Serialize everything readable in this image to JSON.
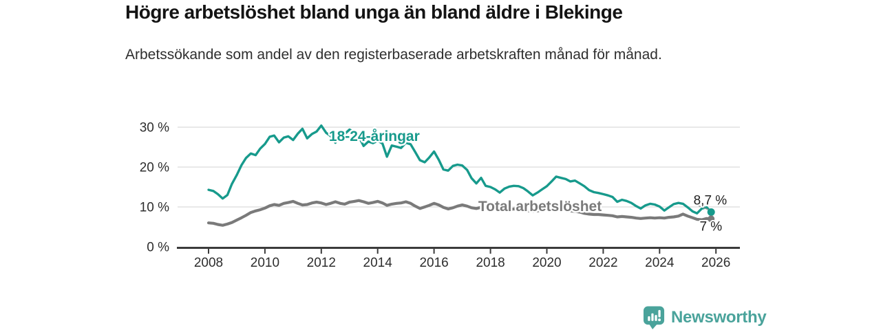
{
  "header": {
    "title": "Högre arbetslöshet bland unga än bland äldre i Blekinge",
    "subtitle": "Arbetssökande som andel av den registerbaserade arbetskraften månad för månad."
  },
  "footer": {
    "brand": "Newsworthy",
    "brand_color": "#4aa39b"
  },
  "chart_data": {
    "type": "line",
    "title": "Högre arbetslöshet bland unga än bland äldre i Blekinge",
    "subtitle": "Arbetssökande som andel av den registerbaserade arbetskraften månad för månad.",
    "grid": true,
    "unit": "%",
    "x_axis": {
      "range": [
        2006.95,
        2026.85
      ],
      "ticks": [
        2008,
        2010,
        2012,
        2014,
        2016,
        2018,
        2020,
        2022,
        2024,
        2026
      ]
    },
    "y_axis": {
      "ticks": [
        {
          "value": 0,
          "label": "0 %"
        },
        {
          "value": 10,
          "label": "10 %"
        },
        {
          "value": 20,
          "label": "20 %"
        },
        {
          "value": 30,
          "label": "30 %"
        }
      ]
    },
    "series": [
      {
        "name": "18-24-åringar",
        "color": "#179a8c",
        "end_label": "8,7 %",
        "label_pos": {
          "x": 2012.27,
          "y": 27.8
        },
        "points": [
          [
            2008.0,
            14.3
          ],
          [
            2008.17,
            14.0
          ],
          [
            2008.33,
            13.2
          ],
          [
            2008.5,
            12.1
          ],
          [
            2008.67,
            13.0
          ],
          [
            2008.83,
            15.8
          ],
          [
            2009.0,
            18.0
          ],
          [
            2009.17,
            20.5
          ],
          [
            2009.33,
            22.3
          ],
          [
            2009.5,
            23.4
          ],
          [
            2009.67,
            23.0
          ],
          [
            2009.83,
            24.6
          ],
          [
            2010.0,
            25.8
          ],
          [
            2010.17,
            27.6
          ],
          [
            2010.33,
            27.9
          ],
          [
            2010.5,
            26.2
          ],
          [
            2010.67,
            27.4
          ],
          [
            2010.83,
            27.7
          ],
          [
            2011.0,
            26.8
          ],
          [
            2011.17,
            28.4
          ],
          [
            2011.33,
            29.6
          ],
          [
            2011.5,
            27.2
          ],
          [
            2011.67,
            28.3
          ],
          [
            2011.83,
            28.9
          ],
          [
            2012.0,
            30.4
          ],
          [
            2012.17,
            28.6
          ],
          [
            2012.33,
            27.8
          ],
          [
            2012.5,
            26.1
          ],
          [
            2012.67,
            27.9
          ],
          [
            2012.83,
            28.3
          ],
          [
            2013.0,
            29.4
          ],
          [
            2013.17,
            28.8
          ],
          [
            2013.33,
            27.6
          ],
          [
            2013.5,
            25.3
          ],
          [
            2013.67,
            26.4
          ],
          [
            2013.83,
            26.0
          ],
          [
            2014.0,
            26.6
          ],
          [
            2014.17,
            25.9
          ],
          [
            2014.33,
            22.6
          ],
          [
            2014.5,
            25.4
          ],
          [
            2014.67,
            25.1
          ],
          [
            2014.83,
            24.8
          ],
          [
            2015.0,
            26.1
          ],
          [
            2015.17,
            25.7
          ],
          [
            2015.33,
            23.8
          ],
          [
            2015.5,
            21.7
          ],
          [
            2015.67,
            21.2
          ],
          [
            2015.83,
            22.4
          ],
          [
            2016.0,
            23.9
          ],
          [
            2016.17,
            21.8
          ],
          [
            2016.33,
            19.4
          ],
          [
            2016.5,
            19.1
          ],
          [
            2016.67,
            20.3
          ],
          [
            2016.83,
            20.6
          ],
          [
            2017.0,
            20.4
          ],
          [
            2017.17,
            19.3
          ],
          [
            2017.33,
            17.2
          ],
          [
            2017.5,
            15.9
          ],
          [
            2017.67,
            17.3
          ],
          [
            2017.83,
            15.3
          ],
          [
            2018.0,
            15.0
          ],
          [
            2018.17,
            14.4
          ],
          [
            2018.33,
            13.6
          ],
          [
            2018.5,
            14.6
          ],
          [
            2018.67,
            15.1
          ],
          [
            2018.83,
            15.3
          ],
          [
            2019.0,
            15.2
          ],
          [
            2019.17,
            14.7
          ],
          [
            2019.33,
            13.9
          ],
          [
            2019.5,
            12.9
          ],
          [
            2019.67,
            13.6
          ],
          [
            2019.83,
            14.4
          ],
          [
            2020.0,
            15.2
          ],
          [
            2020.17,
            16.4
          ],
          [
            2020.33,
            17.6
          ],
          [
            2020.5,
            17.3
          ],
          [
            2020.67,
            17.0
          ],
          [
            2020.83,
            16.4
          ],
          [
            2021.0,
            16.6
          ],
          [
            2021.17,
            15.9
          ],
          [
            2021.33,
            15.2
          ],
          [
            2021.5,
            14.2
          ],
          [
            2021.67,
            13.7
          ],
          [
            2021.83,
            13.5
          ],
          [
            2022.0,
            13.2
          ],
          [
            2022.17,
            12.9
          ],
          [
            2022.33,
            12.5
          ],
          [
            2022.5,
            11.3
          ],
          [
            2022.67,
            11.8
          ],
          [
            2022.83,
            11.5
          ],
          [
            2023.0,
            11.0
          ],
          [
            2023.17,
            10.2
          ],
          [
            2023.33,
            9.6
          ],
          [
            2023.5,
            10.4
          ],
          [
            2023.67,
            10.8
          ],
          [
            2023.83,
            10.6
          ],
          [
            2024.0,
            10.1
          ],
          [
            2024.17,
            9.1
          ],
          [
            2024.33,
            9.9
          ],
          [
            2024.5,
            10.7
          ],
          [
            2024.67,
            11.0
          ],
          [
            2024.83,
            10.8
          ],
          [
            2025.0,
            9.9
          ],
          [
            2025.17,
            8.9
          ],
          [
            2025.33,
            8.4
          ],
          [
            2025.5,
            9.6
          ],
          [
            2025.67,
            9.9
          ],
          [
            2025.83,
            8.7
          ]
        ]
      },
      {
        "name": "Total arbetslöshet",
        "color": "#7a7a7a",
        "end_label": "7 %",
        "label_pos": {
          "x": 2017.57,
          "y": 10.2
        },
        "points": [
          [
            2008.0,
            6.0
          ],
          [
            2008.17,
            5.9
          ],
          [
            2008.33,
            5.6
          ],
          [
            2008.5,
            5.4
          ],
          [
            2008.67,
            5.7
          ],
          [
            2008.83,
            6.1
          ],
          [
            2009.0,
            6.7
          ],
          [
            2009.17,
            7.3
          ],
          [
            2009.33,
            7.9
          ],
          [
            2009.5,
            8.6
          ],
          [
            2009.67,
            9.0
          ],
          [
            2009.83,
            9.3
          ],
          [
            2010.0,
            9.7
          ],
          [
            2010.17,
            10.3
          ],
          [
            2010.33,
            10.6
          ],
          [
            2010.5,
            10.4
          ],
          [
            2010.67,
            10.9
          ],
          [
            2010.83,
            11.1
          ],
          [
            2011.0,
            11.4
          ],
          [
            2011.17,
            10.9
          ],
          [
            2011.33,
            10.5
          ],
          [
            2011.5,
            10.6
          ],
          [
            2011.67,
            11.0
          ],
          [
            2011.83,
            11.2
          ],
          [
            2012.0,
            11.0
          ],
          [
            2012.17,
            10.6
          ],
          [
            2012.33,
            10.9
          ],
          [
            2012.5,
            11.3
          ],
          [
            2012.67,
            10.9
          ],
          [
            2012.83,
            10.7
          ],
          [
            2013.0,
            11.2
          ],
          [
            2013.17,
            11.4
          ],
          [
            2013.33,
            11.6
          ],
          [
            2013.5,
            11.3
          ],
          [
            2013.67,
            10.9
          ],
          [
            2013.83,
            11.1
          ],
          [
            2014.0,
            11.4
          ],
          [
            2014.17,
            11.0
          ],
          [
            2014.33,
            10.4
          ],
          [
            2014.5,
            10.7
          ],
          [
            2014.67,
            10.9
          ],
          [
            2014.83,
            11.0
          ],
          [
            2015.0,
            11.3
          ],
          [
            2015.17,
            10.9
          ],
          [
            2015.33,
            10.2
          ],
          [
            2015.5,
            9.6
          ],
          [
            2015.67,
            10.0
          ],
          [
            2015.83,
            10.4
          ],
          [
            2016.0,
            10.9
          ],
          [
            2016.17,
            10.5
          ],
          [
            2016.33,
            9.9
          ],
          [
            2016.5,
            9.5
          ],
          [
            2016.67,
            9.8
          ],
          [
            2016.83,
            10.2
          ],
          [
            2017.0,
            10.5
          ],
          [
            2017.17,
            10.2
          ],
          [
            2017.33,
            9.8
          ],
          [
            2017.5,
            9.6
          ],
          [
            2017.67,
            9.9
          ],
          [
            2017.83,
            10.1
          ],
          [
            2018.0,
            9.9
          ],
          [
            2018.17,
            9.6
          ],
          [
            2018.33,
            9.3
          ],
          [
            2018.5,
            9.1
          ],
          [
            2018.67,
            9.3
          ],
          [
            2018.83,
            9.5
          ],
          [
            2019.0,
            9.4
          ],
          [
            2019.17,
            9.2
          ],
          [
            2019.33,
            9.0
          ],
          [
            2019.5,
            8.9
          ],
          [
            2019.67,
            9.0
          ],
          [
            2019.83,
            9.2
          ],
          [
            2020.0,
            9.3
          ],
          [
            2020.17,
            9.5
          ],
          [
            2020.33,
            9.6
          ],
          [
            2020.5,
            9.4
          ],
          [
            2020.67,
            9.2
          ],
          [
            2020.83,
            9.0
          ],
          [
            2021.0,
            8.9
          ],
          [
            2021.17,
            8.7
          ],
          [
            2021.33,
            8.4
          ],
          [
            2021.5,
            8.2
          ],
          [
            2021.67,
            8.1
          ],
          [
            2021.83,
            8.1
          ],
          [
            2022.0,
            8.0
          ],
          [
            2022.17,
            7.9
          ],
          [
            2022.33,
            7.8
          ],
          [
            2022.5,
            7.5
          ],
          [
            2022.67,
            7.6
          ],
          [
            2022.83,
            7.5
          ],
          [
            2023.0,
            7.4
          ],
          [
            2023.17,
            7.2
          ],
          [
            2023.33,
            7.1
          ],
          [
            2023.5,
            7.2
          ],
          [
            2023.67,
            7.3
          ],
          [
            2023.83,
            7.2
          ],
          [
            2024.0,
            7.3
          ],
          [
            2024.17,
            7.2
          ],
          [
            2024.33,
            7.4
          ],
          [
            2024.5,
            7.5
          ],
          [
            2024.67,
            7.7
          ],
          [
            2024.83,
            8.2
          ],
          [
            2025.0,
            7.7
          ],
          [
            2025.17,
            7.3
          ],
          [
            2025.33,
            6.9
          ],
          [
            2025.5,
            6.8
          ],
          [
            2025.67,
            7.1
          ],
          [
            2025.83,
            7.0
          ]
        ]
      }
    ]
  }
}
